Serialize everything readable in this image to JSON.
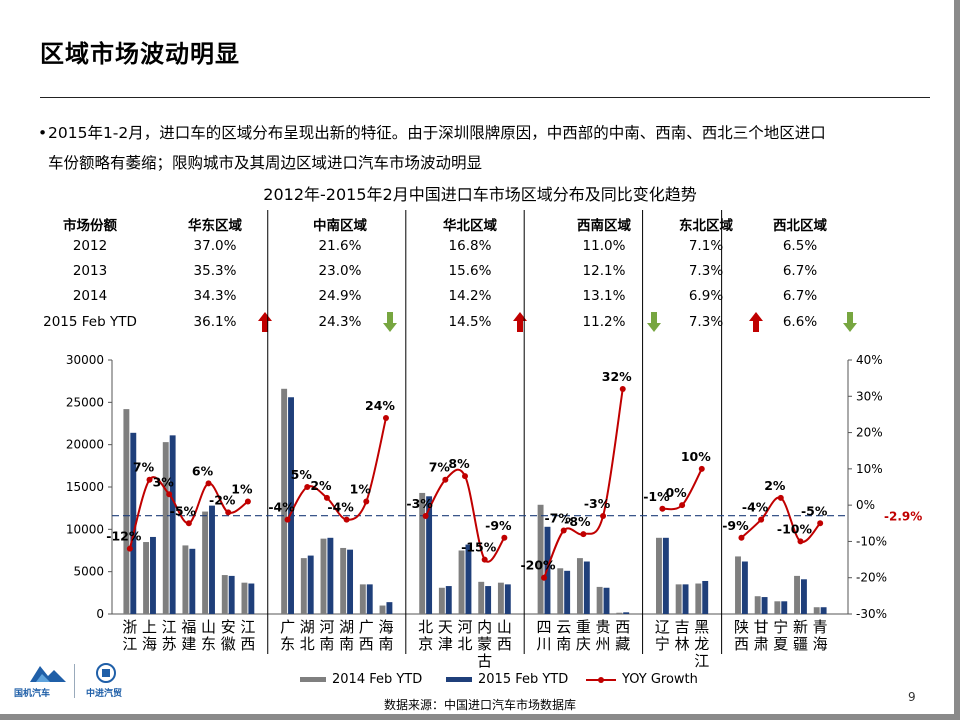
{
  "slide": {
    "title": "区域市场波动明显",
    "bullet_line1": "2015年1-2月，进口车的区域分布呈现出新的特征。由于深圳限牌原因，中西部的中南、西南、西北三个地区进口",
    "bullet_line2": "车份额略有萎缩；限购城市及其周边区域进口汽车市场波动明显",
    "chart_title": "2012年-2015年2月中国进口车市场区域分布及同比变化趋势",
    "source": "数据来源：中国进口汽车市场数据库",
    "page_number": "9",
    "logo1_text": "国机汽车",
    "logo2_text": "中进汽贸"
  },
  "share_table": {
    "header_label": "市场份额",
    "row_labels": [
      "2012",
      "2013",
      "2014",
      "2015 Feb YTD"
    ],
    "regions": [
      {
        "name": "华东区域",
        "values": [
          "37.0%",
          "35.3%",
          "34.3%",
          "36.1%"
        ],
        "trend": "up"
      },
      {
        "name": "中南区域",
        "values": [
          "21.6%",
          "23.0%",
          "24.9%",
          "24.3%"
        ],
        "trend": "down"
      },
      {
        "name": "华北区域",
        "values": [
          "16.8%",
          "15.6%",
          "14.2%",
          "14.5%"
        ],
        "trend": "up"
      },
      {
        "name": "西南区域",
        "values": [
          "11.0%",
          "12.1%",
          "13.1%",
          "11.2%"
        ],
        "trend": "down"
      },
      {
        "name": "东北区域",
        "values": [
          "7.1%",
          "7.3%",
          "6.9%",
          "7.3%"
        ],
        "trend": "up"
      },
      {
        "name": "西北区域",
        "values": [
          "6.5%",
          "6.7%",
          "6.7%",
          "6.6%"
        ],
        "trend": "down"
      }
    ],
    "colors": {
      "up": "#c00000",
      "down": "#77a640"
    }
  },
  "chart_data": {
    "type": "bar",
    "categories": [
      "浙江",
      "上海",
      "江苏",
      "福建",
      "山东",
      "安徽",
      "江西",
      "广东",
      "湖北",
      "河南",
      "湖南",
      "广西",
      "海南",
      "北京",
      "天津",
      "河北",
      "内蒙古",
      "山西",
      "四川",
      "云南",
      "重庆",
      "贵州",
      "西藏",
      "辽宁",
      "吉林",
      "黑龙江",
      "陕西",
      "甘肃",
      "宁夏",
      "新疆",
      "青海"
    ],
    "groups": [
      [
        0,
        6
      ],
      [
        7,
        12
      ],
      [
        13,
        17
      ],
      [
        18,
        22
      ],
      [
        23,
        25
      ],
      [
        26,
        30
      ]
    ],
    "series": [
      {
        "name": "2014 Feb YTD",
        "type": "bar",
        "color": "#7f7f7f",
        "axis": "left",
        "values": [
          24200,
          8500,
          20300,
          8100,
          12100,
          4600,
          3700,
          26600,
          6600,
          8900,
          7800,
          3500,
          1000,
          14300,
          3100,
          7500,
          3800,
          3700,
          12900,
          5400,
          6600,
          3200,
          150,
          9000,
          3500,
          3600,
          6800,
          2100,
          1500,
          4500,
          800
        ]
      },
      {
        "name": "2015 Feb YTD",
        "type": "bar",
        "color": "#1f3f7a",
        "axis": "left",
        "values": [
          21400,
          9100,
          21100,
          7700,
          12800,
          4500,
          3600,
          25600,
          6900,
          9000,
          7600,
          3500,
          1400,
          13900,
          3300,
          8200,
          3300,
          3500,
          10300,
          5100,
          6200,
          3100,
          200,
          9000,
          3500,
          3900,
          6200,
          2000,
          1500,
          4100,
          800
        ]
      },
      {
        "name": "YOY Growth",
        "type": "line",
        "color": "#c00000",
        "axis": "right",
        "values": [
          -12,
          7,
          3,
          -5,
          6,
          -2,
          1,
          -4,
          5,
          2,
          -4,
          1,
          24,
          -3,
          7,
          8,
          -15,
          -9,
          -20,
          -7,
          -8,
          -3,
          32,
          -1,
          0,
          10,
          -9,
          -4,
          2,
          -10,
          -5
        ]
      }
    ],
    "ylim_left": [
      0,
      30000
    ],
    "yticks_left": [
      "30000",
      "25000",
      "20000",
      "15000",
      "10000",
      "5000",
      "0"
    ],
    "ylim_right": [
      -30,
      40
    ],
    "yticks_right": [
      "40%",
      "30%",
      "20%",
      "10%",
      "0%",
      "-10%",
      "-20%",
      "-30%"
    ],
    "reference_line": {
      "value": -2.9,
      "label": "-2.9%",
      "color": "#1f3f7a",
      "label_color": "#c00000"
    },
    "line_labels": [
      "-12%",
      "7%",
      "3%",
      "-5%",
      "6%",
      "-2%",
      "1%",
      "-4%",
      "5%",
      "2%",
      "-4%",
      "1%",
      "24%",
      "-3%",
      "7%",
      "8%",
      "-15%",
      "-9%",
      "-20%",
      "-7%",
      "-8%",
      "-3%",
      "32%",
      "-1%",
      "0%",
      "10%",
      "-9%",
      "-4%",
      "2%",
      "-10%",
      "-5%"
    ],
    "legend": [
      "2014 Feb YTD",
      "2015 Feb YTD",
      "YOY Growth"
    ],
    "legend_position": "bottom"
  }
}
